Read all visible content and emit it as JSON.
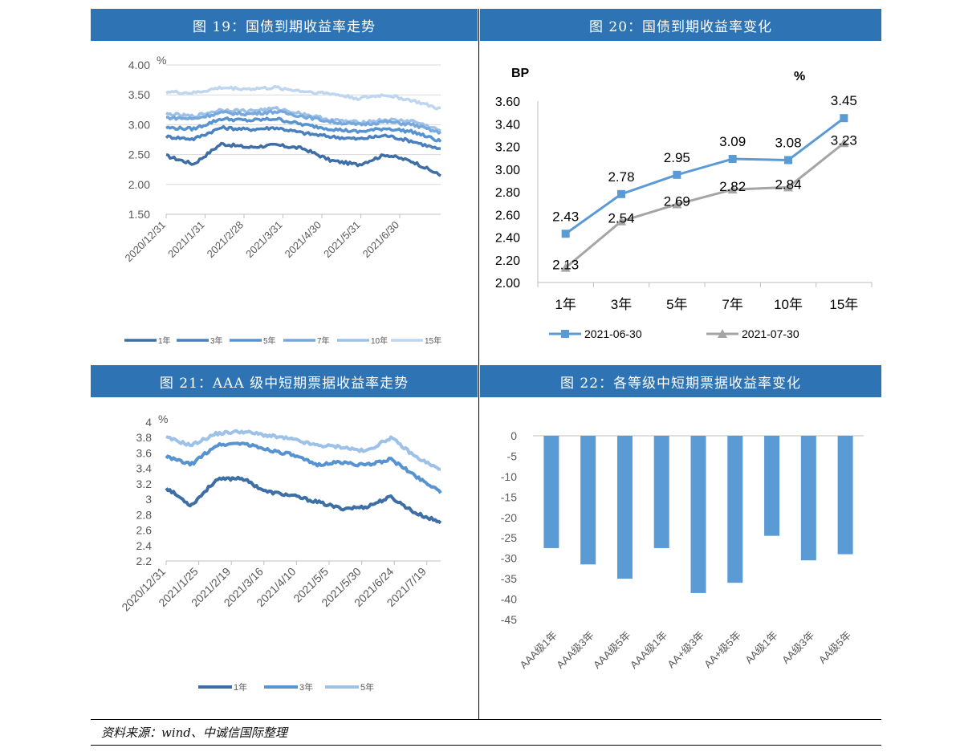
{
  "panels": {
    "p19": {
      "title": "图 19：国债到期收益率走势"
    },
    "p20": {
      "title": "图 20：国债到期收益率变化"
    },
    "p21": {
      "title": "图 21：AAA 级中短期票据收益率走势"
    },
    "p22": {
      "title": "图 22：各等级中短期票据收益率变化"
    }
  },
  "source_note": "资料来源：wind、中诚信国际整理",
  "colors": {
    "header": "#2e74b5",
    "s1": "#3d6ea5",
    "s3": "#4a80bd",
    "s5": "#5793d1",
    "s7": "#77a8dc",
    "s10": "#9ec1e8",
    "s15": "#bed6f0",
    "blue": "#5b9bd5",
    "gray": "#a5a5a5"
  },
  "chart_data": [
    {
      "id": "fig19",
      "type": "line",
      "unit_label": "%",
      "ylim": [
        1.5,
        4.0
      ],
      "yticks": [
        "4.00",
        "3.50",
        "3.00",
        "2.50",
        "2.00",
        "1.50"
      ],
      "xticks": [
        "2020/12/31",
        "2021/1/31",
        "2021/2/28",
        "2021/3/31",
        "2021/4/30",
        "2021/5/31",
        "2021/6/30"
      ],
      "x_key_count": 9,
      "series": [
        {
          "name": "1年",
          "values": [
            2.48,
            2.34,
            2.68,
            2.62,
            2.66,
            2.6,
            2.4,
            2.33,
            2.5,
            2.38,
            2.15
          ]
        },
        {
          "name": "3年",
          "values": [
            2.8,
            2.76,
            2.95,
            2.92,
            2.95,
            2.86,
            2.8,
            2.76,
            2.82,
            2.72,
            2.58
          ]
        },
        {
          "name": "5年",
          "values": [
            2.95,
            2.93,
            3.1,
            3.07,
            3.1,
            3.0,
            2.93,
            2.88,
            2.94,
            2.88,
            2.72
          ]
        },
        {
          "name": "7年",
          "values": [
            3.12,
            3.1,
            3.2,
            3.18,
            3.22,
            3.14,
            3.05,
            3.0,
            3.05,
            3.0,
            2.86
          ]
        },
        {
          "name": "10年",
          "values": [
            3.18,
            3.14,
            3.25,
            3.23,
            3.27,
            3.18,
            3.08,
            3.04,
            3.08,
            3.06,
            2.9
          ]
        },
        {
          "name": "15年",
          "values": [
            3.55,
            3.53,
            3.62,
            3.6,
            3.62,
            3.56,
            3.52,
            3.44,
            3.5,
            3.4,
            3.26
          ]
        }
      ]
    },
    {
      "id": "fig20",
      "type": "line",
      "ylabel": "BP",
      "unit_label": "%",
      "ylim": [
        2.0,
        3.6
      ],
      "yticks": [
        "3.60",
        "3.40",
        "3.20",
        "3.00",
        "2.80",
        "2.60",
        "2.40",
        "2.20",
        "2.00"
      ],
      "categories": [
        "1年",
        "3年",
        "5年",
        "7年",
        "10年",
        "15年"
      ],
      "series": [
        {
          "name": "2021-06-30",
          "values": [
            2.43,
            2.78,
            2.95,
            3.09,
            3.08,
            3.45
          ],
          "labels": [
            "2.43",
            "2.78",
            "2.95",
            "3.09",
            "3.08",
            "3.45"
          ]
        },
        {
          "name": "2021-07-30",
          "values": [
            2.13,
            2.54,
            2.69,
            2.82,
            2.84,
            3.23
          ],
          "labels": [
            "2.13",
            "2.54",
            "2.69",
            "2.82",
            "2.84",
            "3.23"
          ]
        }
      ]
    },
    {
      "id": "fig21",
      "type": "line",
      "unit_label": "%",
      "ylim": [
        2.2,
        4.0
      ],
      "yticks": [
        "4",
        "3.8",
        "3.6",
        "3.4",
        "3.2",
        "3",
        "2.8",
        "2.6",
        "2.4",
        "2.2"
      ],
      "xticks": [
        "2020/12/31",
        "2021/1/25",
        "2021/2/19",
        "2021/3/16",
        "2021/4/10",
        "2021/5/5",
        "2021/5/30",
        "2021/6/24",
        "2021/7/19"
      ],
      "series": [
        {
          "name": "1年",
          "values": [
            3.15,
            2.92,
            3.25,
            3.28,
            3.1,
            3.05,
            2.97,
            2.88,
            2.9,
            3.03,
            2.82,
            2.7
          ]
        },
        {
          "name": "3年",
          "values": [
            3.55,
            3.45,
            3.7,
            3.73,
            3.65,
            3.58,
            3.45,
            3.48,
            3.44,
            3.52,
            3.3,
            3.1
          ]
        },
        {
          "name": "5年",
          "values": [
            3.8,
            3.7,
            3.85,
            3.88,
            3.83,
            3.78,
            3.7,
            3.68,
            3.62,
            3.8,
            3.55,
            3.38
          ]
        }
      ]
    },
    {
      "id": "fig22",
      "type": "bar",
      "ylim": [
        -45,
        0
      ],
      "yticks": [
        "0",
        "-5",
        "-10",
        "-15",
        "-20",
        "-25",
        "-30",
        "-35",
        "-40",
        "-45"
      ],
      "categories": [
        "AAA级1年",
        "AAA级3年",
        "AAA级5年",
        "AAA级1年",
        "AA+级3年",
        "AA+级5年",
        "AA级1年",
        "AA级3年",
        "AA级5年"
      ],
      "values": [
        -27.5,
        -31.5,
        -35,
        -27.5,
        -38.5,
        -36,
        -24.5,
        -30.5,
        -29
      ]
    }
  ]
}
